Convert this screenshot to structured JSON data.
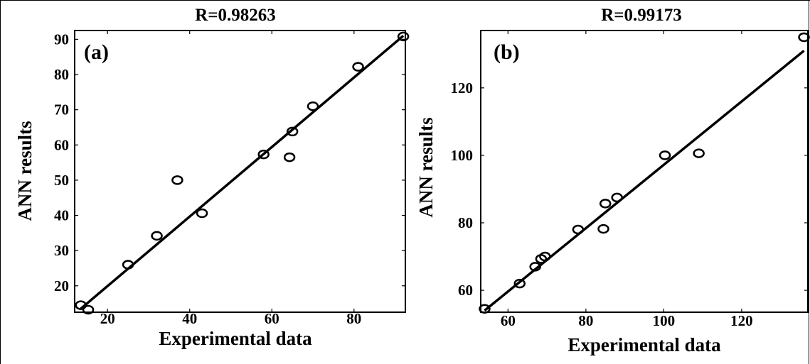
{
  "chart_data": [
    {
      "type": "scatter",
      "title": "R=0.98263",
      "panel_label": "(a)",
      "xlabel": "Experimental data",
      "ylabel": "ANN results",
      "xlim": [
        12,
        92.5
      ],
      "ylim": [
        12.5,
        92.5
      ],
      "xticks": [
        20,
        40,
        60,
        80
      ],
      "yticks": [
        20,
        30,
        40,
        50,
        60,
        70,
        80,
        90
      ],
      "grid": false,
      "points": [
        {
          "x": 13.5,
          "y": 14.5
        },
        {
          "x": 15.3,
          "y": 13.2
        },
        {
          "x": 25,
          "y": 26
        },
        {
          "x": 32,
          "y": 34.2
        },
        {
          "x": 37,
          "y": 50
        },
        {
          "x": 43,
          "y": 40.6
        },
        {
          "x": 58,
          "y": 57.3
        },
        {
          "x": 64.3,
          "y": 56.5
        },
        {
          "x": 65,
          "y": 63.8
        },
        {
          "x": 70,
          "y": 71
        },
        {
          "x": 81,
          "y": 82.2
        },
        {
          "x": 92,
          "y": 90.8
        }
      ],
      "fit_line": [
        [
          13.5,
          13.5
        ],
        [
          92,
          91
        ]
      ]
    },
    {
      "type": "scatter",
      "title": "R=0.99173",
      "panel_label": "(b)",
      "xlabel": "Experimental data",
      "ylabel": "ANN results",
      "xlim": [
        53,
        137
      ],
      "ylim": [
        53.5,
        137
      ],
      "xticks": [
        60,
        80,
        100,
        120
      ],
      "yticks": [
        60,
        80,
        100,
        120
      ],
      "grid": false,
      "points": [
        {
          "x": 54,
          "y": 54.5
        },
        {
          "x": 63,
          "y": 62
        },
        {
          "x": 67,
          "y": 67
        },
        {
          "x": 68.5,
          "y": 69.3
        },
        {
          "x": 69.5,
          "y": 70
        },
        {
          "x": 78,
          "y": 78
        },
        {
          "x": 84.5,
          "y": 78.2
        },
        {
          "x": 85,
          "y": 85.7
        },
        {
          "x": 88,
          "y": 87.5
        },
        {
          "x": 100.3,
          "y": 100
        },
        {
          "x": 109,
          "y": 100.6
        },
        {
          "x": 136,
          "y": 135
        }
      ],
      "fit_line": [
        [
          54,
          54
        ],
        [
          136,
          131
        ]
      ]
    }
  ]
}
